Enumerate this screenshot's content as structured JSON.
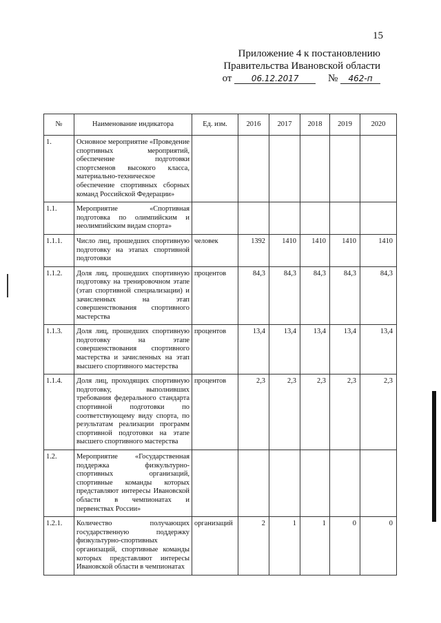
{
  "page_number": "15",
  "header": {
    "line1": "Приложение 4 к постановлению",
    "line2": "Правительства Ивановской области",
    "from_label": "от",
    "date": "06.12.2017",
    "number_label": "№",
    "number": "462-п"
  },
  "table": {
    "columns": [
      "№",
      "Наименование индикатора",
      "Ед. изм.",
      "2016",
      "2017",
      "2018",
      "2019",
      "2020"
    ],
    "rows": [
      {
        "no": "1.",
        "name": "Основное мероприятие «Проведение спортивных мероприятий, обеспечение подготовки спортсменов высокого класса, материально-техническое обеспечение спортивных сборных команд Российской Федерации»",
        "unit": "",
        "values": [
          "",
          "",
          "",
          "",
          ""
        ]
      },
      {
        "no": "1.1.",
        "name": "Мероприятие «Спортивная подготовка по олимпийским и неолимпийским видам спорта»",
        "unit": "",
        "values": [
          "",
          "",
          "",
          "",
          ""
        ]
      },
      {
        "no": "1.1.1.",
        "name": "Число лиц, прошедших спортивную подготовку на этапах спортивной подготовки",
        "unit": "человек",
        "values": [
          "1392",
          "1410",
          "1410",
          "1410",
          "1410"
        ]
      },
      {
        "no": "1.1.2.",
        "name": "Доля лиц, прошедших спортивную подготовку на тренировочном этапе (этап спортивной специализации) и зачисленных на этап совершенствования спортивного мастерства",
        "unit": "процентов",
        "values": [
          "84,3",
          "84,3",
          "84,3",
          "84,3",
          "84,3"
        ]
      },
      {
        "no": "1.1.3.",
        "name": "Доля лиц, прошедших спортивную подготовку на этапе совершенствования спортивного мастерства и зачисленных на этап высшего спортивного мастерства",
        "unit": "процентов",
        "values": [
          "13,4",
          "13,4",
          "13,4",
          "13,4",
          "13,4"
        ]
      },
      {
        "no": "1.1.4.",
        "name": "Доля лиц, проходящих спортивную подготовку, выполнивших требования федерального стандарта спортивной подготовки по соответствующему виду спорта, по результатам реализации программ спортивной подготовки на этапе высшего спортивного мастерства",
        "unit": "процентов",
        "values": [
          "2,3",
          "2,3",
          "2,3",
          "2,3",
          "2,3"
        ]
      },
      {
        "no": "1.2.",
        "name": "Мероприятие «Государственная поддержка физкультурно-спортивных организаций, спортивные команды которых представляют интересы Ивановской области в чемпионатах и первенствах России»",
        "unit": "",
        "values": [
          "",
          "",
          "",
          "",
          ""
        ]
      },
      {
        "no": "1.2.1.",
        "name": "Количество получающих государственную поддержку физкультурно-спортивных организаций, спортивные команды которых представляют интересы Ивановской области в чемпионатах",
        "unit": "организаций",
        "values": [
          "2",
          "1",
          "1",
          "0",
          "0"
        ]
      }
    ]
  }
}
